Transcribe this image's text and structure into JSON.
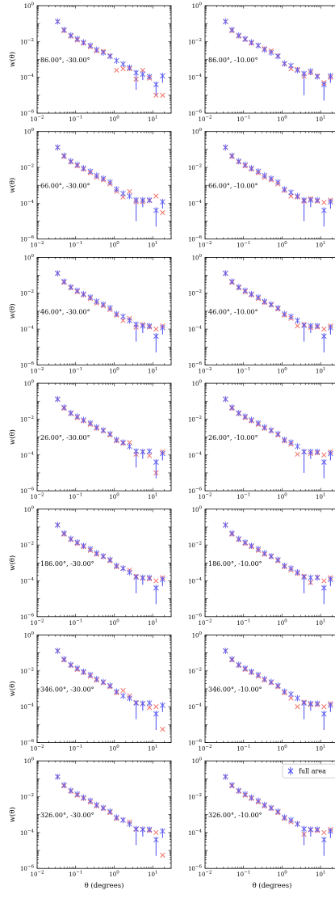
{
  "chart_data": {
    "type": "scatter",
    "xlabel": "θ (degrees)",
    "ylabel": "w(θ)",
    "xscale": "log",
    "yscale": "log",
    "xlim": [
      0.01,
      30
    ],
    "ylim": [
      1e-06,
      1
    ],
    "x_ticks": [
      0.01,
      0.1,
      1,
      10
    ],
    "x_tick_labels": [
      {
        "base": "10",
        "exp": "−2"
      },
      {
        "base": "10",
        "exp": "−1"
      },
      {
        "base": "10",
        "exp": "0"
      },
      {
        "base": "10",
        "exp": "1"
      }
    ],
    "y_ticks": [
      1e-06,
      0.0001,
      0.01,
      1
    ],
    "y_tick_labels": [
      {
        "base": "10",
        "exp": "−6"
      },
      {
        "base": "10",
        "exp": "−4"
      },
      {
        "base": "10",
        "exp": "−2"
      },
      {
        "base": "10",
        "exp": "0"
      }
    ],
    "legend": {
      "entries": [
        "full area"
      ],
      "placement": "top-right of bottom-right panel"
    },
    "series_colors": {
      "full_area": "#5a5af0",
      "subsample": "#f0645a"
    },
    "theta": [
      0.034,
      0.05,
      0.075,
      0.11,
      0.16,
      0.24,
      0.35,
      0.52,
      0.78,
      1.15,
      1.7,
      2.5,
      3.7,
      5.5,
      8.2,
      12.2,
      18.0
    ],
    "panels": [
      {
        "label": "86.00°, -30.00°",
        "full": [
          0.13,
          0.045,
          0.022,
          0.014,
          0.009,
          0.006,
          0.0035,
          0.0024,
          0.0015,
          0.00085,
          0.00055,
          0.00035,
          0.00018,
          0.00015,
          0.00011,
          4e-05,
          0.00012
        ],
        "full_err": [
          null,
          null,
          null,
          null,
          null,
          null,
          null,
          null,
          null,
          null,
          null,
          null,
          0.00016,
          8e-05,
          null,
          3e-05,
          7e-05
        ],
        "sub": [
          0.13,
          0.04,
          0.02,
          0.012,
          0.008,
          0.005,
          0.003,
          0.0028,
          0.0016,
          0.00025,
          0.0003,
          0.0003,
          8e-05,
          0.00025,
          9e-05,
          1e-05,
          1e-05
        ]
      },
      {
        "label": "86.00°, -10.00°",
        "full": [
          0.13,
          0.045,
          0.022,
          0.014,
          0.009,
          0.006,
          0.0035,
          0.0024,
          0.0015,
          0.0006,
          0.00045,
          0.00025,
          0.00016,
          0.00022,
          0.00011,
          4e-05,
          0.00012
        ],
        "full_err": [
          null,
          null,
          null,
          null,
          null,
          null,
          null,
          null,
          null,
          null,
          null,
          null,
          0.00015,
          9e-05,
          null,
          3.5e-05,
          7e-05
        ],
        "sub": [
          0.13,
          0.04,
          0.02,
          0.013,
          0.008,
          0.006,
          0.004,
          0.003,
          0.0016,
          0.00055,
          0.0003,
          0.00028,
          0.00012,
          0.00018,
          0.00012,
          5e-05,
          0.0001
        ]
      },
      {
        "label": "66.00°, -30.00°",
        "full": [
          0.13,
          0.045,
          0.022,
          0.014,
          0.009,
          0.006,
          0.0035,
          0.0024,
          0.0015,
          0.0006,
          0.00035,
          0.00025,
          0.00015,
          0.00015,
          0.00015,
          4e-05,
          0.00012
        ],
        "full_err": [
          null,
          null,
          null,
          null,
          null,
          null,
          null,
          null,
          null,
          null,
          null,
          null,
          0.00014,
          9e-05,
          null,
          3.5e-05,
          7e-05
        ],
        "sub": [
          0.13,
          0.04,
          0.02,
          0.012,
          0.008,
          0.005,
          0.0028,
          0.002,
          0.0012,
          0.00045,
          0.00022,
          0.00045,
          0.00012,
          0.00012,
          0.00014,
          0.00025,
          3e-05
        ]
      },
      {
        "label": "66.00°, -10.00°",
        "full": [
          0.13,
          0.045,
          0.022,
          0.014,
          0.009,
          0.006,
          0.0035,
          0.0024,
          0.0015,
          0.0006,
          0.0004,
          0.00025,
          0.00015,
          0.00015,
          0.00015,
          4e-05,
          0.00012
        ],
        "full_err": [
          null,
          null,
          null,
          null,
          null,
          null,
          null,
          null,
          null,
          null,
          null,
          null,
          0.00014,
          9e-05,
          null,
          3.5e-05,
          7e-05
        ],
        "sub": [
          0.13,
          0.04,
          0.02,
          0.012,
          0.008,
          0.005,
          0.0028,
          0.002,
          0.0012,
          0.0005,
          0.00025,
          0.00022,
          0.00013,
          0.00018,
          0.00013,
          0.00011,
          0.00015
        ]
      },
      {
        "label": "46.00°, -30.00°",
        "full": [
          0.13,
          0.045,
          0.022,
          0.014,
          0.009,
          0.006,
          0.0035,
          0.0024,
          0.0015,
          0.0007,
          0.0005,
          0.0003,
          0.00018,
          0.00015,
          0.00015,
          4e-05,
          0.00012
        ],
        "full_err": [
          null,
          null,
          null,
          null,
          null,
          null,
          null,
          null,
          null,
          null,
          null,
          null,
          0.00016,
          9e-05,
          null,
          3.5e-05,
          7e-05
        ],
        "sub": [
          0.13,
          0.04,
          0.02,
          0.012,
          0.008,
          0.005,
          0.0028,
          0.002,
          0.0012,
          0.0006,
          0.0003,
          0.0004,
          0.00013,
          0.00018,
          0.00013,
          0.0001,
          0.00015
        ]
      },
      {
        "label": "46.00°, -10.00°",
        "full": [
          0.13,
          0.045,
          0.022,
          0.014,
          0.009,
          0.006,
          0.0035,
          0.0024,
          0.0015,
          0.0007,
          0.0005,
          0.0003,
          0.00016,
          0.00015,
          0.00015,
          4e-05,
          0.00012
        ],
        "full_err": [
          null,
          null,
          null,
          null,
          null,
          null,
          null,
          null,
          null,
          null,
          null,
          null,
          0.00014,
          9e-05,
          null,
          3.5e-05,
          7e-05
        ],
        "sub": [
          0.13,
          0.04,
          0.02,
          0.012,
          0.008,
          0.005,
          0.003,
          0.0022,
          0.0013,
          0.0006,
          0.0004,
          0.00015,
          0.00018,
          0.00012,
          0.00013,
          0.0001,
          0.00015
        ]
      },
      {
        "label": "26.00°, -30.00°",
        "full": [
          0.13,
          0.045,
          0.022,
          0.014,
          0.009,
          0.006,
          0.0035,
          0.0024,
          0.0015,
          0.0007,
          0.0005,
          0.0003,
          0.00016,
          0.00015,
          0.00016,
          4e-05,
          0.00012
        ],
        "full_err": [
          null,
          null,
          null,
          null,
          null,
          null,
          null,
          null,
          null,
          null,
          null,
          null,
          0.00014,
          9e-05,
          null,
          3.5e-05,
          7e-05
        ],
        "sub": [
          0.13,
          0.04,
          0.02,
          0.012,
          0.008,
          0.005,
          0.003,
          0.0022,
          0.0013,
          0.0006,
          0.00045,
          0.0005,
          0.00011,
          0.00015,
          9e-05,
          1e-05,
          0.00015
        ]
      },
      {
        "label": "26.00°, -10.00°",
        "full": [
          0.13,
          0.045,
          0.022,
          0.014,
          0.009,
          0.006,
          0.0035,
          0.0024,
          0.0015,
          0.0007,
          0.0005,
          0.0003,
          0.00015,
          0.00015,
          0.00015,
          4e-05,
          0.00012
        ],
        "full_err": [
          null,
          null,
          null,
          null,
          null,
          null,
          null,
          null,
          null,
          null,
          null,
          null,
          0.00014,
          9e-05,
          null,
          3.5e-05,
          7e-05
        ],
        "sub": [
          0.13,
          0.04,
          0.02,
          0.012,
          0.008,
          0.005,
          0.003,
          0.0022,
          0.0013,
          0.0006,
          0.0004,
          0.00011,
          0.00015,
          0.00012,
          0.00013,
          0.0001,
          0.00015
        ]
      },
      {
        "label": "186.00°, -30.00°",
        "full": [
          0.13,
          0.045,
          0.022,
          0.014,
          0.009,
          0.006,
          0.0035,
          0.0024,
          0.0015,
          0.0007,
          0.0005,
          0.0003,
          0.00016,
          0.00015,
          0.00015,
          4e-05,
          0.00012
        ],
        "full_err": [
          null,
          null,
          null,
          null,
          null,
          null,
          null,
          null,
          null,
          null,
          null,
          null,
          0.00014,
          9e-05,
          null,
          3.5e-05,
          7e-05
        ],
        "sub": [
          0.13,
          0.04,
          0.02,
          0.012,
          0.008,
          0.005,
          0.003,
          0.0022,
          0.0013,
          0.0006,
          0.0005,
          0.0004,
          0.00018,
          0.00014,
          0.00013,
          0.0001,
          0.00015
        ]
      },
      {
        "label": "186.00°, -10.00°",
        "full": [
          0.13,
          0.045,
          0.022,
          0.014,
          0.009,
          0.006,
          0.0035,
          0.0024,
          0.0015,
          0.0007,
          0.0005,
          0.0003,
          0.00016,
          0.00015,
          0.00015,
          4e-05,
          0.00012
        ],
        "full_err": [
          null,
          null,
          null,
          null,
          null,
          null,
          null,
          null,
          null,
          null,
          null,
          null,
          0.00014,
          9e-05,
          null,
          3.5e-05,
          7e-05
        ],
        "sub": [
          0.13,
          0.04,
          0.02,
          0.012,
          0.008,
          0.005,
          0.003,
          0.0022,
          0.0013,
          0.0006,
          0.0004,
          0.00025,
          0.00018,
          8e-05,
          0.00016,
          0.0001,
          0.00015
        ]
      },
      {
        "label": "346.00°, -30.00°",
        "full": [
          0.13,
          0.045,
          0.022,
          0.014,
          0.009,
          0.006,
          0.0035,
          0.0024,
          0.0015,
          0.0007,
          0.0004,
          0.0003,
          0.00016,
          0.00015,
          0.00016,
          4e-05,
          0.00012
        ],
        "full_err": [
          null,
          null,
          null,
          null,
          null,
          null,
          null,
          null,
          null,
          null,
          null,
          null,
          0.00014,
          9e-05,
          null,
          3.5e-05,
          7e-05
        ],
        "sub": [
          0.13,
          0.04,
          0.02,
          0.012,
          0.008,
          0.005,
          0.003,
          0.0022,
          0.0013,
          0.0006,
          0.0008,
          0.0004,
          0.00017,
          0.00015,
          9e-05,
          0.0001,
          5.5e-06
        ]
      },
      {
        "label": "346.00°, -10.00°",
        "full": [
          0.13,
          0.045,
          0.022,
          0.014,
          0.009,
          0.006,
          0.0035,
          0.0024,
          0.0015,
          0.0007,
          0.0005,
          0.0003,
          0.00016,
          0.00015,
          0.00015,
          4e-05,
          0.00012
        ],
        "full_err": [
          null,
          null,
          null,
          null,
          null,
          null,
          null,
          null,
          null,
          null,
          null,
          null,
          0.00014,
          9e-05,
          null,
          3.5e-05,
          7e-05
        ],
        "sub": [
          0.13,
          0.04,
          0.02,
          0.012,
          0.008,
          0.005,
          0.003,
          0.0022,
          0.0013,
          0.0006,
          0.0003,
          0.0001,
          0.00018,
          0.00013,
          0.00013,
          0.0001,
          0.00015
        ]
      },
      {
        "label": "326.00°, -30.00°",
        "full": [
          0.13,
          0.045,
          0.022,
          0.014,
          0.009,
          0.006,
          0.0035,
          0.0024,
          0.0015,
          0.0007,
          0.0005,
          0.0003,
          0.00016,
          0.00015,
          0.00015,
          4e-05,
          0.00012
        ],
        "full_err": [
          null,
          null,
          null,
          null,
          null,
          null,
          null,
          null,
          null,
          null,
          null,
          null,
          0.00014,
          9e-05,
          null,
          3.5e-05,
          7e-05
        ],
        "sub": [
          0.13,
          0.04,
          0.02,
          0.012,
          0.008,
          0.005,
          0.003,
          0.0022,
          0.0013,
          0.0006,
          0.0005,
          0.0004,
          0.00015,
          0.00015,
          0.00013,
          0.0001,
          5.5e-06
        ]
      },
      {
        "label": "326.00°, -10.00°",
        "full": [
          0.13,
          0.045,
          0.022,
          0.014,
          0.009,
          0.006,
          0.0035,
          0.0024,
          0.0015,
          0.0007,
          0.0005,
          0.0003,
          0.00016,
          0.00015,
          0.00015,
          4e-05,
          0.00012
        ],
        "full_err": [
          null,
          null,
          null,
          null,
          null,
          null,
          null,
          null,
          null,
          null,
          null,
          null,
          0.00014,
          9e-05,
          null,
          3.5e-05,
          7e-05
        ],
        "sub": [
          0.13,
          0.04,
          0.02,
          0.012,
          0.008,
          0.005,
          0.003,
          0.0022,
          0.0013,
          0.0006,
          0.0004,
          0.0003,
          8e-05,
          0.00014,
          0.00013,
          0.0001,
          0.00015
        ]
      }
    ]
  }
}
